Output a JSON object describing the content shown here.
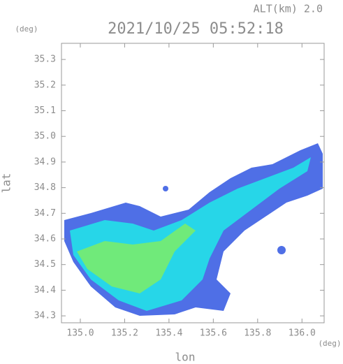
{
  "chart_data": {
    "type": "radar-map",
    "title": "2021/10/25 05:52:18",
    "subtitle": "ALT(km) 2.0",
    "x_label": "lon",
    "y_label": "lat",
    "x_unit": "(deg)",
    "y_unit": "(deg)",
    "xlim": [
      134.915,
      136.1
    ],
    "ylim": [
      34.273,
      35.363
    ],
    "xticks": [
      {
        "value": 135.0,
        "label": "135.0"
      },
      {
        "value": 135.2,
        "label": "135.2"
      },
      {
        "value": 135.4,
        "label": "135.4"
      },
      {
        "value": 135.6,
        "label": "135.6"
      },
      {
        "value": 135.8,
        "label": "135.8"
      },
      {
        "value": 136.0,
        "label": "136.0"
      }
    ],
    "yticks": [
      {
        "value": 34.3,
        "label": "34.3"
      },
      {
        "value": 34.4,
        "label": "34.4"
      },
      {
        "value": 34.5,
        "label": "34.5"
      },
      {
        "value": 34.6,
        "label": "34.6"
      },
      {
        "value": 34.7,
        "label": "34.7"
      },
      {
        "value": 34.8,
        "label": "34.8"
      },
      {
        "value": 34.9,
        "label": "34.9"
      },
      {
        "value": 35.0,
        "label": "35.0"
      },
      {
        "value": 35.1,
        "label": "35.1"
      },
      {
        "value": 35.2,
        "label": "35.2"
      },
      {
        "value": 35.3,
        "label": "35.3"
      }
    ]
  }
}
